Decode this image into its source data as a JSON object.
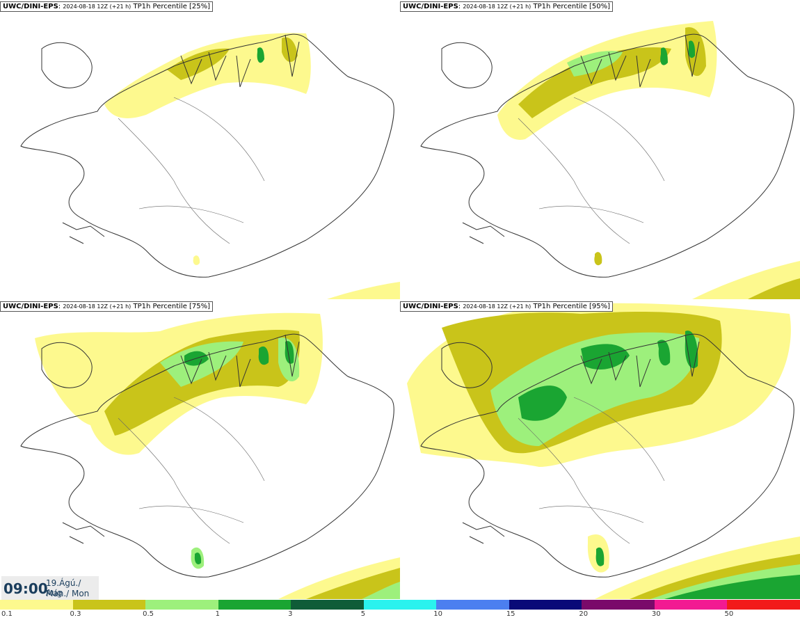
{
  "panels": [
    {
      "model": "UWC/DINI-EPS",
      "run": "2024-08-18 12Z (+21 h)",
      "product": "TP1h Percentile [25%]"
    },
    {
      "model": "UWC/DINI-EPS",
      "run": "2024-08-18 12Z (+21 h)",
      "product": "TP1h Percentile [50%]"
    },
    {
      "model": "UWC/DINI-EPS",
      "run": "2024-08-18 12Z (+21 h)",
      "product": "TP1h Percentile [75%]"
    },
    {
      "model": "UWC/DINI-EPS",
      "run": "2024-08-18 12Z (+21 h)",
      "product": "TP1h Percentile [95%]"
    }
  ],
  "valid_time": {
    "time": "09:00",
    "date_line1": "19.Ágú./ Aug",
    "date_line2": "Mán./ Mon"
  },
  "legend": {
    "colors": [
      "#fdf98e",
      "#c9c41a",
      "#9df07c",
      "#1aa532",
      "#0f5c38",
      "#2af2ee",
      "#4c7ff0",
      "#0a0a78",
      "#7a0a6a",
      "#f21a92",
      "#f21a1a"
    ],
    "ticks": [
      "0.1",
      "0.3",
      "0.5",
      "1",
      "3",
      "5",
      "10",
      "15",
      "20",
      "30",
      "50"
    ]
  }
}
